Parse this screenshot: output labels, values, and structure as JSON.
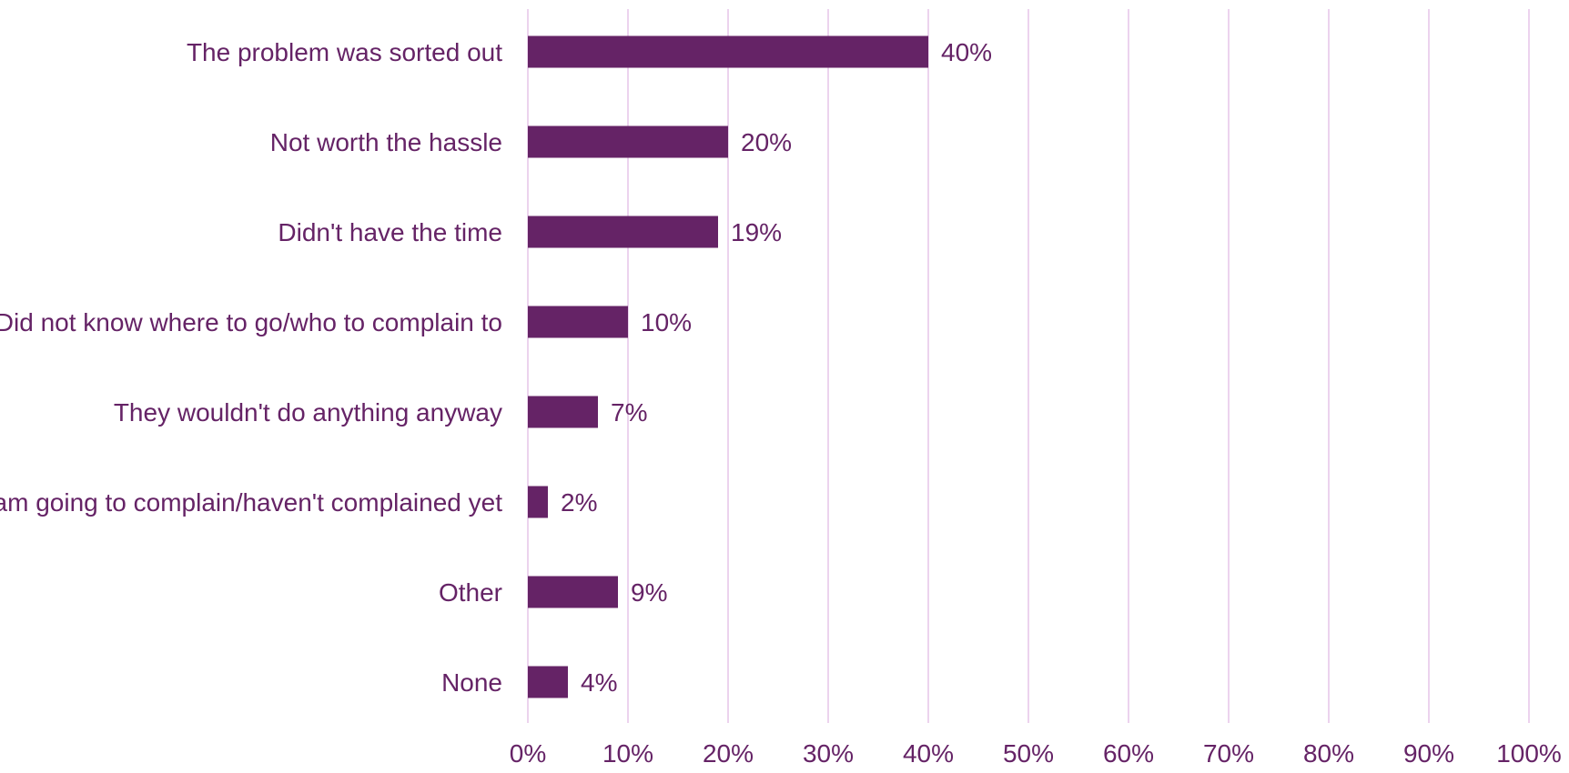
{
  "chart_data": {
    "type": "bar",
    "orientation": "horizontal",
    "title": "",
    "xlabel": "",
    "ylabel": "",
    "categories": [
      "The problem was sorted out",
      "Not worth the hassle",
      "Didn't have the time",
      "Did not know where to go/who to complain to",
      "They wouldn't do anything anyway",
      "I am going to complain/haven't complained yet",
      "Other",
      "None"
    ],
    "values": [
      40,
      20,
      19,
      10,
      7,
      2,
      9,
      4
    ],
    "value_labels": [
      "40%",
      "20%",
      "19%",
      "10%",
      "7%",
      "2%",
      "9%",
      "4%"
    ],
    "xlim": [
      0,
      100
    ],
    "x_ticks": [
      0,
      10,
      20,
      30,
      40,
      50,
      60,
      70,
      80,
      90,
      100
    ],
    "x_tick_labels": [
      "0%",
      "10%",
      "20%",
      "30%",
      "40%",
      "50%",
      "60%",
      "70%",
      "80%",
      "90%",
      "100%"
    ],
    "grid": true,
    "legend": "none",
    "colors": {
      "bar": "#652366",
      "text": "#652366",
      "grid": "#ecd3ee"
    }
  }
}
